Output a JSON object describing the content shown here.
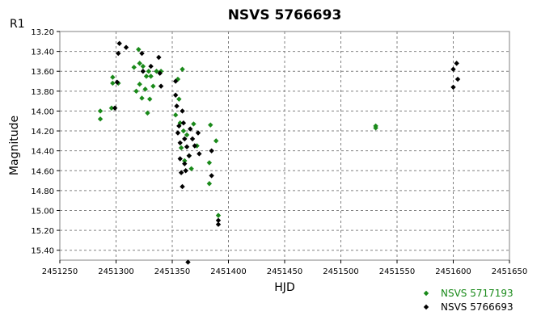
{
  "chart_data": {
    "type": "scatter",
    "title": "NSVS 5766693",
    "corner_label": "R1",
    "xlabel": "HJD",
    "ylabel": "Magnitude",
    "xlim": [
      2451250,
      2451650
    ],
    "ylim": [
      13.2,
      15.5
    ],
    "y_inverted": true,
    "x_ticks": [
      2451250,
      2451300,
      2451350,
      2451400,
      2451450,
      2451500,
      2451550,
      2451600,
      2451650
    ],
    "y_ticks": [
      "13.20",
      "13.40",
      "13.60",
      "13.80",
      "14.00",
      "14.20",
      "14.40",
      "14.60",
      "14.80",
      "15.00",
      "15.20",
      "15.40"
    ],
    "grid": true,
    "legend_position": "bottom-right",
    "series": [
      {
        "name": "NSVS 5717193",
        "color": "#1a8a1a",
        "points": [
          [
            2451286,
            14.0
          ],
          [
            2451286,
            14.08
          ],
          [
            2451296,
            13.97
          ],
          [
            2451297,
            13.66
          ],
          [
            2451297,
            13.72
          ],
          [
            2451302,
            13.72
          ],
          [
            2451316,
            13.56
          ],
          [
            2451318,
            13.8
          ],
          [
            2451320,
            13.38
          ],
          [
            2451321,
            13.52
          ],
          [
            2451321,
            13.73
          ],
          [
            2451323,
            13.87
          ],
          [
            2451324,
            13.55
          ],
          [
            2451326,
            13.78
          ],
          [
            2451327,
            13.65
          ],
          [
            2451328,
            14.02
          ],
          [
            2451329,
            13.6
          ],
          [
            2451330,
            13.88
          ],
          [
            2451331,
            13.65
          ],
          [
            2451333,
            13.75
          ],
          [
            2451336,
            13.6
          ],
          [
            2451340,
            13.6
          ],
          [
            2451353,
            14.04
          ],
          [
            2451355,
            13.68
          ],
          [
            2451356,
            13.88
          ],
          [
            2451357,
            14.12
          ],
          [
            2451358,
            14.37
          ],
          [
            2451359,
            13.58
          ],
          [
            2451360,
            14.2
          ],
          [
            2451361,
            14.5
          ],
          [
            2451363,
            14.24
          ],
          [
            2451365,
            14.45
          ],
          [
            2451367,
            14.58
          ],
          [
            2451369,
            14.13
          ],
          [
            2451372,
            14.35
          ],
          [
            2451383,
            14.52
          ],
          [
            2451383,
            14.73
          ],
          [
            2451384,
            14.14
          ],
          [
            2451389,
            14.3
          ],
          [
            2451391,
            15.05
          ],
          [
            2451531,
            14.15
          ],
          [
            2451531,
            14.17
          ]
        ]
      },
      {
        "name": "NSVS 5766693",
        "color": "#000000",
        "points": [
          [
            2451299,
            13.97
          ],
          [
            2451301,
            13.71
          ],
          [
            2451302,
            13.42
          ],
          [
            2451303,
            13.32
          ],
          [
            2451309,
            13.36
          ],
          [
            2451323,
            13.42
          ],
          [
            2451324,
            13.6
          ],
          [
            2451331,
            13.55
          ],
          [
            2451338,
            13.46
          ],
          [
            2451339,
            13.62
          ],
          [
            2451340,
            13.75
          ],
          [
            2451353,
            13.7
          ],
          [
            2451353,
            13.84
          ],
          [
            2451354,
            13.95
          ],
          [
            2451355,
            14.22
          ],
          [
            2451356,
            14.15
          ],
          [
            2451357,
            14.32
          ],
          [
            2451357,
            14.48
          ],
          [
            2451358,
            14.62
          ],
          [
            2451359,
            14.76
          ],
          [
            2451359,
            14.0
          ],
          [
            2451360,
            14.12
          ],
          [
            2451361,
            14.28
          ],
          [
            2451361,
            14.53
          ],
          [
            2451362,
            14.6
          ],
          [
            2451363,
            14.36
          ],
          [
            2451364,
            15.52
          ],
          [
            2451365,
            14.45
          ],
          [
            2451366,
            14.18
          ],
          [
            2451368,
            14.28
          ],
          [
            2451370,
            14.35
          ],
          [
            2451373,
            14.22
          ],
          [
            2451374,
            14.43
          ],
          [
            2451385,
            14.4
          ],
          [
            2451385,
            14.65
          ],
          [
            2451391,
            15.1
          ],
          [
            2451391,
            15.14
          ],
          [
            2451600,
            13.58
          ],
          [
            2451600,
            13.76
          ],
          [
            2451603,
            13.52
          ],
          [
            2451604,
            13.68
          ]
        ]
      }
    ]
  }
}
